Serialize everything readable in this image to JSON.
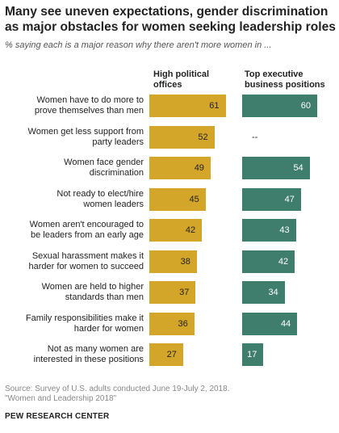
{
  "title_lines": [
    "Many see uneven expectations, gender discrimination",
    "as major obstacles for women seeking leadership roles"
  ],
  "subtitle": "% saying each is a major reason why there aren't more women in ...",
  "source_lines": [
    "Source: Survey of U.S. adults conducted June 19-July 2, 2018.",
    "\"Women and Leadership 2018\""
  ],
  "brand": "PEW RESEARCH CENTER",
  "colors": {
    "political": "#d3a629",
    "business": "#3f7d6c"
  },
  "chart_data": {
    "type": "bar",
    "orientation": "horizontal",
    "categories": [
      [
        "Women have to do more to",
        "prove themselves than men"
      ],
      [
        "Women get less support from",
        "party leaders"
      ],
      [
        "Women face gender",
        "discrimination"
      ],
      [
        "Not ready to elect/hire",
        "women leaders"
      ],
      [
        "Women aren't encouraged to",
        "be leaders from an early age"
      ],
      [
        "Sexual harassment makes it",
        "harder for women to succeed"
      ],
      [
        "Women are held to higher",
        "standards than men"
      ],
      [
        "Family responsibilities make it",
        "harder for women"
      ],
      [
        "Not as many women are",
        "interested in these positions"
      ]
    ],
    "series": [
      {
        "name": [
          "High political",
          "offices"
        ],
        "values": [
          61,
          52,
          49,
          45,
          42,
          38,
          37,
          36,
          27
        ]
      },
      {
        "name": [
          "Top executive",
          "business positions"
        ],
        "values": [
          60,
          null,
          54,
          47,
          43,
          42,
          34,
          44,
          17
        ]
      }
    ],
    "missing_label": "--"
  }
}
